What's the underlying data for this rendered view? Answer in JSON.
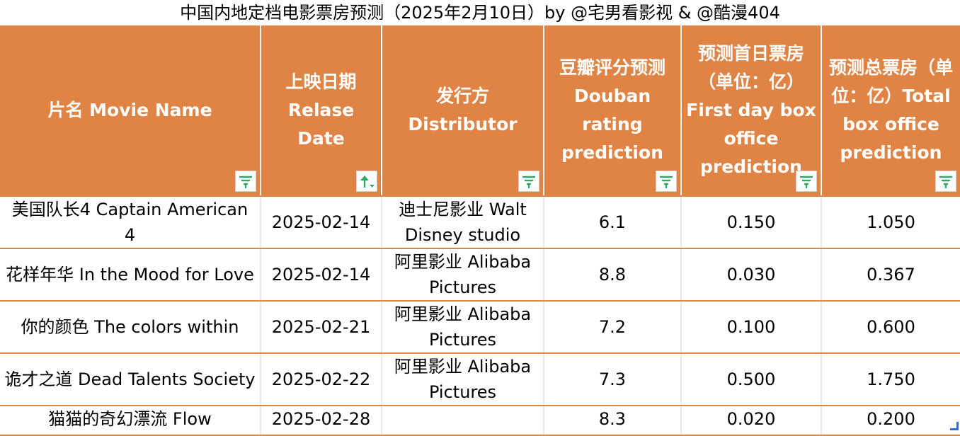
{
  "title": "中国内地定档电影票房预测（2025年2月10日）by @宅男看影视 & @酷漫404",
  "colors": {
    "header_bg": "#df8444",
    "header_text": "#ffffff",
    "row_divider": "#df8444",
    "filter_icon": "#2da96a",
    "sort_icon": "#2da96a"
  },
  "columns": [
    {
      "label": "片名 Movie Name",
      "control": "filter-icon"
    },
    {
      "label": "上映日期 Relase Date",
      "control": "sort-ascending-icon"
    },
    {
      "label": "发行方 Distributor",
      "control": "filter-icon"
    },
    {
      "label": "豆瓣评分预测 Douban rating prediction",
      "control": "filter-icon"
    },
    {
      "label": "预测首日票房（单位：亿）First day box office prediction",
      "control": "filter-icon"
    },
    {
      "label": "预测总票房（单位：亿）Total box office prediction",
      "control": "filter-icon"
    }
  ],
  "rows": [
    [
      "美国队长4 Captain American 4",
      "2025-02-14",
      "迪士尼影业 Walt Disney studio",
      "6.1",
      "0.150",
      "1.050"
    ],
    [
      "花样年华 In the Mood for Love",
      "2025-02-14",
      "阿里影业 Alibaba Pictures",
      "8.8",
      "0.030",
      "0.367"
    ],
    [
      "你的颜色 The colors within",
      "2025-02-21",
      "阿里影业 Alibaba Pictures",
      "7.2",
      "0.100",
      "0.600"
    ],
    [
      "诡才之道 Dead Talents Society",
      "2025-02-22",
      "阿里影业 Alibaba Pictures",
      "7.3",
      "0.500",
      "1.750"
    ],
    [
      "猫猫的奇幻漂流 Flow",
      "2025-02-28",
      "",
      "8.3",
      "0.020",
      "0.200"
    ]
  ]
}
